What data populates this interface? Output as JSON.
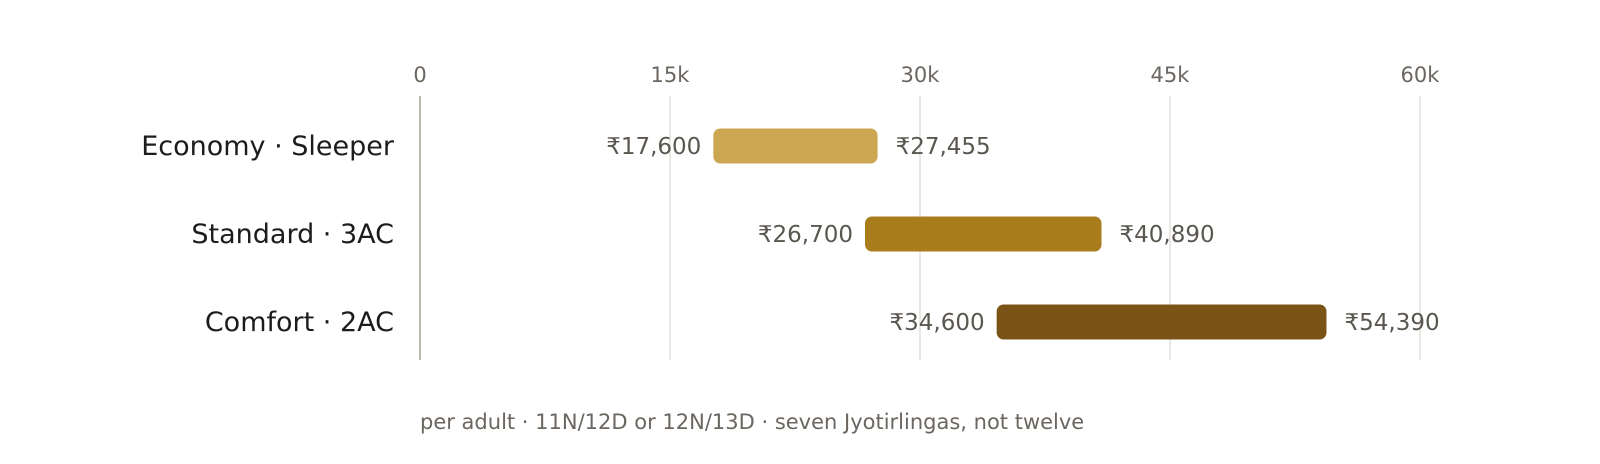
{
  "chart_data": {
    "type": "bar",
    "orientation": "horizontal",
    "range_bars": true,
    "xlim": [
      0,
      60000
    ],
    "ticks": [
      0,
      15000,
      30000,
      45000,
      60000
    ],
    "tick_labels": [
      "0",
      "15k",
      "30k",
      "45k",
      "60k"
    ],
    "grid": true,
    "categories": [
      "Economy · Sleeper",
      "Standard · 3AC",
      "Comfort · 2AC"
    ],
    "ranges": [
      {
        "category": "Economy · Sleeper",
        "low": 17600,
        "high": 27455,
        "low_label": "₹17,600",
        "high_label": "₹27,455",
        "color": "#cda651"
      },
      {
        "category": "Standard · 3AC",
        "low": 26700,
        "high": 40890,
        "low_label": "₹26,700",
        "high_label": "₹40,890",
        "color": "#a97c1c"
      },
      {
        "category": "Comfort · 2AC",
        "low": 34600,
        "high": 54390,
        "low_label": "₹34,600",
        "high_label": "₹54,390",
        "color": "#7a5416"
      }
    ],
    "footnote": "per adult · 11N/12D or 12N/13D · seven Jyotirlingas, not twelve"
  },
  "colors": {
    "gridline": "#e2e0dc",
    "axis": "#bdb8ad"
  }
}
